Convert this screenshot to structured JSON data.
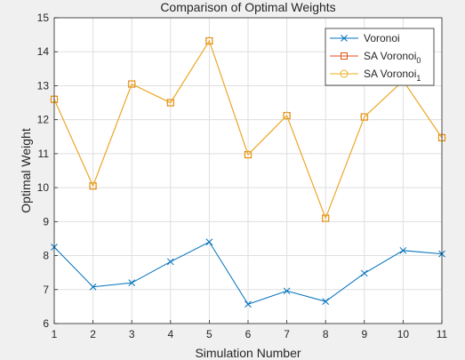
{
  "chart_data": {
    "type": "line",
    "title": "Comparison of Optimal Weights",
    "xlabel": "Simulation Number",
    "ylabel": "Optimal Weight",
    "x": [
      1,
      2,
      3,
      4,
      5,
      6,
      7,
      8,
      9,
      10,
      11
    ],
    "xlim": [
      1,
      11
    ],
    "ylim": [
      6,
      15
    ],
    "xticks": [
      1,
      2,
      3,
      4,
      5,
      6,
      7,
      8,
      9,
      10,
      11
    ],
    "yticks": [
      6,
      7,
      8,
      9,
      10,
      11,
      12,
      13,
      14,
      15
    ],
    "grid": true,
    "legend_position": "top-right",
    "series": [
      {
        "name": "Voronoi",
        "marker": "x",
        "color": "#0072bd",
        "values": [
          8.25,
          7.08,
          7.2,
          7.82,
          8.4,
          6.57,
          6.96,
          6.65,
          7.48,
          8.15,
          8.05
        ]
      },
      {
        "name": "SA Voronoi",
        "subscript": "0",
        "marker": "square",
        "color": "#d95319",
        "values": [
          12.6,
          10.05,
          13.05,
          12.5,
          14.32,
          10.97,
          12.12,
          9.1,
          12.08,
          13.15,
          11.47
        ]
      },
      {
        "name": "SA Voronoi",
        "subscript": "1",
        "marker": "circle",
        "color": "#edb120",
        "values": [
          12.6,
          10.05,
          13.05,
          12.5,
          14.32,
          10.97,
          12.12,
          9.1,
          12.08,
          13.15,
          11.47
        ]
      }
    ]
  }
}
